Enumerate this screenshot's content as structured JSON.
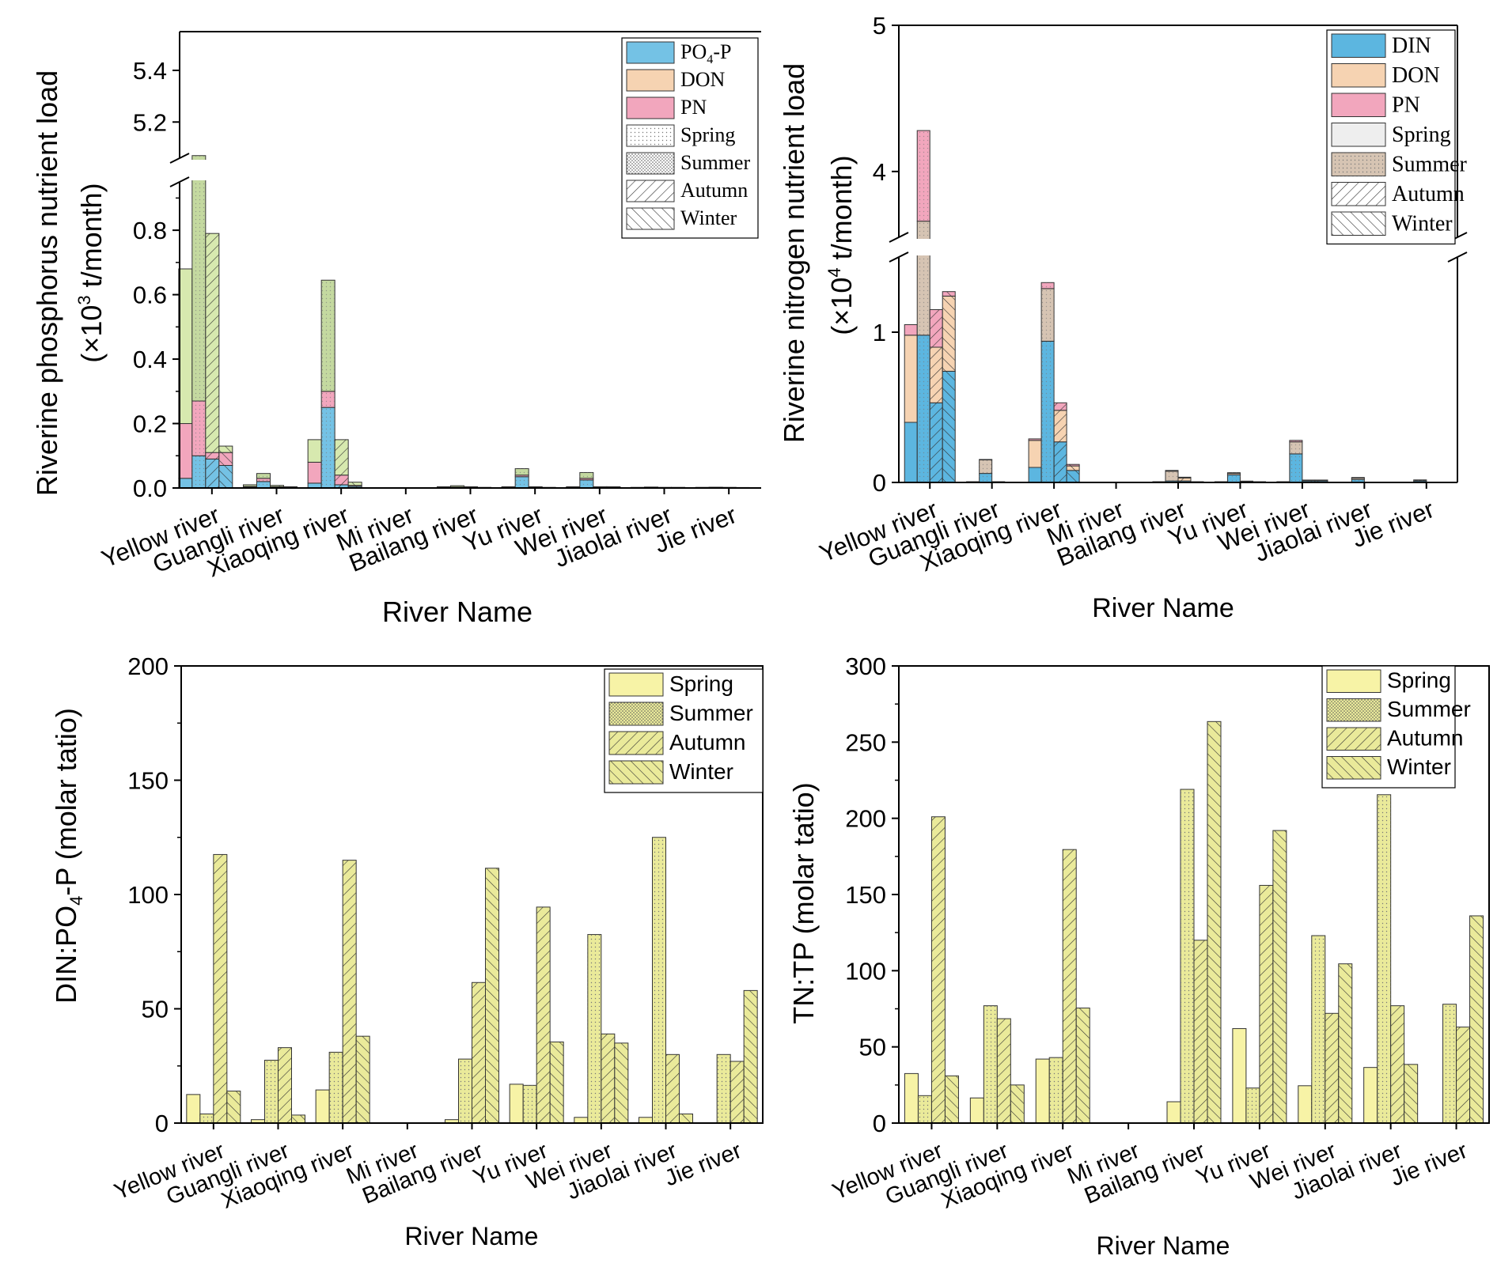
{
  "colors": {
    "po4": "#74c2e5",
    "din": "#5cb6e0",
    "don": "#f6d3b2",
    "pn": "#f2a6bd",
    "p_summer": "#c4d9a0",
    "p_autumn": "#d7e9af",
    "n_spring": "#eeeeee",
    "n_summer": "#d6c4b3",
    "ratio_bar": "#f7f3a6",
    "ratio_bar_dark": "#eaea9a"
  },
  "chart_data": [
    {
      "id": "phosphorus",
      "type": "bar",
      "title": "",
      "ylabel_line1": "Riverine phosphorus nutrient load",
      "ylabel_line2_pre": "(×10",
      "ylabel_line2_sup": "3",
      "ylabel_line2_post": " t/month)",
      "xlabel": "River Name",
      "categories": [
        "Yellow river",
        "Guangli river",
        "Xiaoqing river",
        "Mi river",
        "Bailang river",
        "Yu river",
        "Wei river",
        "Jiaolai river",
        "Jie river"
      ],
      "ylim_lower": [
        0,
        0.95
      ],
      "ylim_upper": [
        5.06,
        5.55
      ],
      "yticks_lower": [
        "0.0",
        "0.2",
        "0.4",
        "0.6",
        "0.8"
      ],
      "yticks_upper": [
        "5.2",
        "5.4"
      ],
      "ytick_values_lower": [
        0,
        0.2,
        0.4,
        0.6,
        0.8
      ],
      "ytick_values_upper": [
        5.2,
        5.4
      ],
      "legend": [
        {
          "label": "PO4-P",
          "label_main": "PO",
          "label_sub": "4",
          "label_tail": "-P",
          "kind": "po4"
        },
        {
          "label": "DON",
          "kind": "don"
        },
        {
          "label": "PN",
          "kind": "pn"
        },
        {
          "label": "Spring",
          "kind": "spring"
        },
        {
          "label": "Summer",
          "kind": "summer"
        },
        {
          "label": "Autumn",
          "kind": "autumn"
        },
        {
          "label": "Winter",
          "kind": "winter"
        }
      ],
      "series_components": [
        "PO4-P",
        "PN",
        "DON"
      ],
      "seasons": [
        "Spring",
        "Summer",
        "Autumn",
        "Winter"
      ],
      "values": [
        [
          [
            0.03,
            0.17,
            0.48
          ],
          [
            0.1,
            0.17,
            4.8
          ],
          [
            0.09,
            0.02,
            0.68
          ],
          [
            0.07,
            0.04,
            0.02
          ]
        ],
        [
          [
            0.003,
            0.002,
            0.005
          ],
          [
            0.02,
            0.01,
            0.015
          ],
          [
            0.002,
            0.002,
            0.004
          ],
          [
            0.001,
            0.001,
            0.002
          ]
        ],
        [
          [
            0.015,
            0.065,
            0.07
          ],
          [
            0.25,
            0.05,
            0.345
          ],
          [
            0.01,
            0.03,
            0.11
          ],
          [
            0.005,
            0.003,
            0.01
          ]
        ],
        [
          [
            0,
            0,
            0
          ],
          [
            0,
            0,
            0
          ],
          [
            0,
            0,
            0
          ],
          [
            0,
            0,
            0
          ]
        ],
        [
          [
            0.001,
            0.001,
            0.002
          ],
          [
            0.002,
            0.001,
            0.004
          ],
          [
            0.001,
            0.001,
            0.002
          ],
          [
            0.0005,
            0.0005,
            0.001
          ]
        ],
        [
          [
            0.001,
            0.001,
            0.002
          ],
          [
            0.035,
            0.005,
            0.02
          ],
          [
            0.001,
            0.001,
            0.002
          ],
          [
            0.0005,
            0.0005,
            0.001
          ]
        ],
        [
          [
            0.001,
            0.001,
            0.002
          ],
          [
            0.025,
            0.005,
            0.018
          ],
          [
            0.001,
            0.001,
            0.002
          ],
          [
            0.001,
            0.001,
            0.002
          ]
        ],
        [
          [
            0.0005,
            0.0005,
            0.001
          ],
          [
            0.001,
            0.001,
            0.001
          ],
          [
            0.0005,
            0.0005,
            0.001
          ],
          [
            0.0005,
            0.0005,
            0.001
          ]
        ],
        [
          [
            0.0005,
            0.0005,
            0.001
          ],
          [
            0.001,
            0.0005,
            0.001
          ],
          [
            0.0005,
            0.0005,
            0.001
          ],
          [
            0.0005,
            0.0005,
            0.0005
          ]
        ]
      ]
    },
    {
      "id": "nitrogen",
      "type": "bar",
      "title": "",
      "ylabel_line1": "Riverine nitrogen nutrient load",
      "ylabel_line2_pre": "(×10",
      "ylabel_line2_sup": "4",
      "ylabel_line2_post": " t/month)",
      "xlabel": "River Name",
      "categories": [
        "Yellow river",
        "Guangli river",
        "Xiaoqing river",
        "Mi river",
        "Bailang river",
        "Yu river",
        "Wei river",
        "Jiaolai river",
        "Jie river"
      ],
      "ylim_lower": [
        0,
        1.5
      ],
      "ylim_upper": [
        3.55,
        5.0
      ],
      "yticks_lower": [
        "0",
        "1"
      ],
      "yticks_upper": [
        "4",
        "5"
      ],
      "ytick_values_lower": [
        0,
        1
      ],
      "ytick_values_upper": [
        4,
        5
      ],
      "legend": [
        {
          "label": "DIN",
          "kind": "din"
        },
        {
          "label": "DON",
          "kind": "don"
        },
        {
          "label": "PN",
          "kind": "pn"
        },
        {
          "label": "Spring",
          "kind": "nspring"
        },
        {
          "label": "Summer",
          "kind": "nsummer"
        },
        {
          "label": "Autumn",
          "kind": "autumn"
        },
        {
          "label": "Winter",
          "kind": "winter"
        }
      ],
      "series_components": [
        "DIN",
        "DON",
        "PN"
      ],
      "seasons": [
        "Spring",
        "Summer",
        "Autumn",
        "Winter"
      ],
      "values": [
        [
          [
            0.4,
            0.58,
            0.07
          ],
          [
            0.98,
            2.68,
            0.62
          ],
          [
            0.53,
            0.37,
            0.25
          ],
          [
            0.74,
            0.5,
            0.03
          ]
        ],
        [
          [
            0.002,
            0.002,
            0.001
          ],
          [
            0.06,
            0.09,
            0.003
          ],
          [
            0.002,
            0.002,
            0.001
          ],
          [
            0.001,
            0.001,
            0.0005
          ]
        ],
        [
          [
            0.1,
            0.18,
            0.01
          ],
          [
            0.94,
            0.35,
            0.04
          ],
          [
            0.27,
            0.21,
            0.05
          ],
          [
            0.08,
            0.03,
            0.01
          ]
        ],
        [
          [
            0,
            0,
            0
          ],
          [
            0,
            0,
            0
          ],
          [
            0,
            0,
            0
          ],
          [
            0,
            0,
            0
          ]
        ],
        [
          [
            0.002,
            0.002,
            0.001
          ],
          [
            0.01,
            0.065,
            0.005
          ],
          [
            0.01,
            0.02,
            0.005
          ],
          [
            0.002,
            0.002,
            0.001
          ]
        ],
        [
          [
            0.002,
            0.002,
            0.001
          ],
          [
            0.05,
            0.01,
            0.005
          ],
          [
            0.005,
            0.003,
            0.001
          ],
          [
            0.002,
            0.002,
            0.001
          ]
        ],
        [
          [
            0.002,
            0.002,
            0.001
          ],
          [
            0.19,
            0.08,
            0.01
          ],
          [
            0.01,
            0.005,
            0.001
          ],
          [
            0.01,
            0.005,
            0.001
          ]
        ],
        [
          [
            0.001,
            0.001,
            0.0005
          ],
          [
            0.02,
            0.01,
            0.003
          ],
          [
            0.001,
            0.001,
            0.0005
          ],
          [
            0.001,
            0.001,
            0.0005
          ]
        ],
        [
          [
            0.001,
            0.001,
            0.0005
          ],
          [
            0.01,
            0.005,
            0.002
          ],
          [
            0.001,
            0.001,
            0.0005
          ],
          [
            0.001,
            0.001,
            0.0005
          ]
        ]
      ]
    },
    {
      "id": "din_po4",
      "type": "bar",
      "title": "",
      "ylabel_pre": "DIN:PO",
      "ylabel_sub": "4",
      "ylabel_post": "-P (molar tatio)",
      "xlabel": "River Name",
      "categories": [
        "Yellow river",
        "Guangli river",
        "Xiaoqing river",
        "Mi river",
        "Bailang river",
        "Yu river",
        "Wei river",
        "Jiaolai river",
        "Jie river"
      ],
      "ylim": [
        0,
        200
      ],
      "yticks": [
        "0",
        "50",
        "100",
        "150",
        "200"
      ],
      "ytick_values": [
        0,
        50,
        100,
        150,
        200
      ],
      "legend": [
        {
          "label": "Spring",
          "kind": "spring"
        },
        {
          "label": "Summer",
          "kind": "summer"
        },
        {
          "label": "Autumn",
          "kind": "autumn"
        },
        {
          "label": "Winter",
          "kind": "winter"
        }
      ],
      "series": [
        {
          "name": "Spring",
          "values": [
            12.5,
            1.5,
            14.5,
            0,
            1.5,
            17,
            2.5,
            2.5,
            0
          ]
        },
        {
          "name": "Summer",
          "values": [
            4,
            27.5,
            31,
            0,
            28,
            16.5,
            82.5,
            125,
            30
          ]
        },
        {
          "name": "Autumn",
          "values": [
            117.5,
            33,
            115,
            0,
            61.5,
            94.5,
            39,
            30,
            27
          ]
        },
        {
          "name": "Winter",
          "values": [
            14,
            3.5,
            38,
            0,
            111.5,
            35.5,
            35,
            4,
            58
          ]
        }
      ]
    },
    {
      "id": "tn_tp",
      "type": "bar",
      "title": "",
      "ylabel": "TN:TP (molar tatio)",
      "xlabel": "River Name",
      "categories": [
        "Yellow river",
        "Guangli river",
        "Xiaoqing river",
        "Mi river",
        "Bailang river",
        "Yu river",
        "Wei river",
        "Jiaolai river",
        "Jie river"
      ],
      "ylim": [
        0,
        300
      ],
      "yticks": [
        "0",
        "50",
        "100",
        "150",
        "200",
        "250",
        "300"
      ],
      "ytick_values": [
        0,
        50,
        100,
        150,
        200,
        250,
        300
      ],
      "legend": [
        {
          "label": "Spring",
          "kind": "spring"
        },
        {
          "label": "Summer",
          "kind": "summer"
        },
        {
          "label": "Autumn",
          "kind": "autumn"
        },
        {
          "label": "Winter",
          "kind": "winter"
        }
      ],
      "series": [
        {
          "name": "Spring",
          "values": [
            32.5,
            16.5,
            42,
            0,
            14,
            62,
            24.5,
            36.5,
            0
          ]
        },
        {
          "name": "Summer",
          "values": [
            18,
            77,
            43,
            0,
            219,
            23,
            123,
            215.5,
            78
          ]
        },
        {
          "name": "Autumn",
          "values": [
            201,
            68.5,
            179.5,
            0,
            120,
            156,
            72,
            77,
            63
          ]
        },
        {
          "name": "Winter",
          "values": [
            31,
            25,
            75.5,
            0,
            263.5,
            192,
            104.5,
            38.5,
            136
          ]
        }
      ]
    }
  ]
}
